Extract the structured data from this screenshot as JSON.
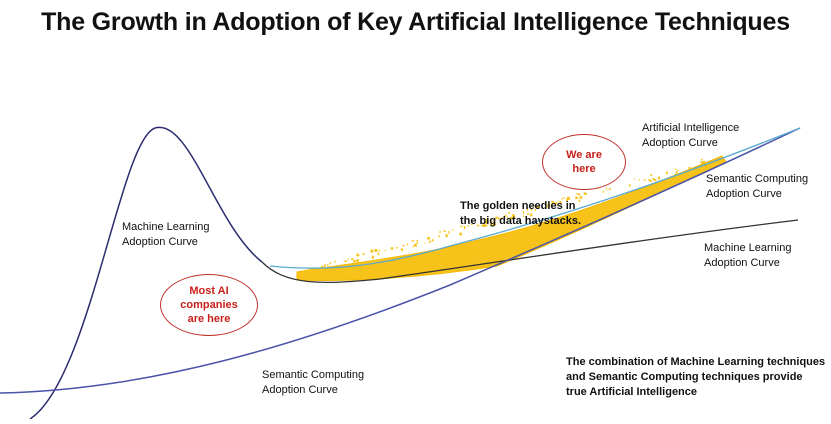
{
  "title": "The Growth in Adoption of Key Artificial Intelligence Techniques",
  "labels": {
    "ml_left": [
      "Machine Learning",
      "Adoption Curve"
    ],
    "ai_curve": [
      "Artificial Intelligence",
      "Adoption Curve"
    ],
    "sc_right": [
      "Semantic Computing",
      "Adoption Curve"
    ],
    "ml_right": [
      "Machine Learning",
      "Adoption Curve"
    ],
    "sc_bottom": [
      "Semantic Computing",
      "Adoption Curve"
    ],
    "golden": [
      "The golden needles in",
      "the big data haystacks."
    ],
    "combination": [
      "The combination of Machine Learning techniques",
      "and Semantic Computing techniques provide",
      "true Artificial Intelligence"
    ]
  },
  "callouts": {
    "we_are_here": [
      "We are",
      "here"
    ],
    "most_ai": [
      "Most AI",
      "companies",
      "are here"
    ]
  },
  "colors": {
    "ml_curve": "#2b2d6e",
    "sc_curve": "#4a54a8",
    "ml_tail": "#333333",
    "ai_curve": "#5aa9cf",
    "haystack": "#f7c31a",
    "callout": "#c0302b"
  }
}
